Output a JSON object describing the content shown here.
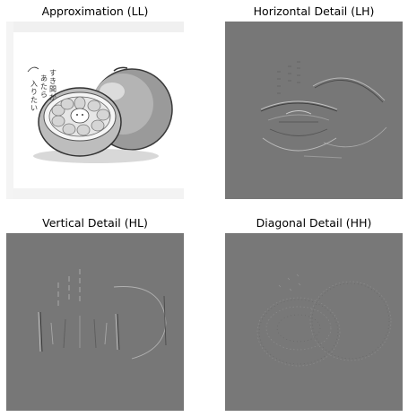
{
  "figure": {
    "panels": [
      {
        "title": "Approximation (LL)",
        "background": "#ffffff"
      },
      {
        "title": "Horizontal Detail (LH)",
        "background": "#777777"
      },
      {
        "title": "Vertical Detail (HL)",
        "background": "#777777"
      },
      {
        "title": "Diagonal Detail (HH)",
        "background": "#777777"
      }
    ],
    "handwriting": "すき間が あたら 入りたい。"
  }
}
